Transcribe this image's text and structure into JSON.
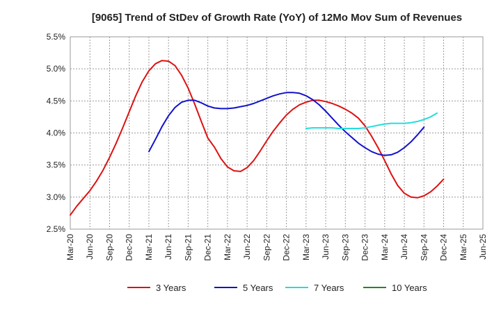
{
  "chart_data": {
    "type": "line",
    "title": "[9065]  Trend of StDev of Growth Rate (YoY) of 12Mo Mov Sum of Revenues",
    "xlabel": "",
    "ylabel": "",
    "ylim": [
      2.5,
      5.5
    ],
    "ytick_values": [
      2.5,
      3.0,
      3.5,
      4.0,
      4.5,
      5.0,
      5.5
    ],
    "ytick_labels": [
      "2.5%",
      "3.0%",
      "3.5%",
      "4.0%",
      "4.5%",
      "5.0%",
      "5.5%"
    ],
    "x_start": "Mar-20",
    "x_end": "Jun-25",
    "xtick_labels": [
      "Mar-20",
      "Jun-20",
      "Sep-20",
      "Dec-20",
      "Mar-21",
      "Jun-21",
      "Sep-21",
      "Dec-21",
      "Mar-22",
      "Jun-22",
      "Sep-22",
      "Dec-22",
      "Mar-23",
      "Jun-23",
      "Sep-23",
      "Dec-23",
      "Mar-24",
      "Jun-24",
      "Sep-24",
      "Dec-24",
      "Mar-25",
      "Jun-25"
    ],
    "grid": true,
    "legend_position": "bottom",
    "series": [
      {
        "name": "3 Years",
        "color": "#dd1111",
        "start_index": 0,
        "values": [
          2.72,
          2.86,
          2.98,
          3.1,
          3.25,
          3.42,
          3.62,
          3.84,
          4.08,
          4.33,
          4.58,
          4.8,
          4.97,
          5.08,
          5.13,
          5.12,
          5.05,
          4.9,
          4.7,
          4.45,
          4.18,
          3.92,
          3.78,
          3.6,
          3.47,
          3.41,
          3.4,
          3.46,
          3.57,
          3.72,
          3.88,
          4.03,
          4.16,
          4.28,
          4.37,
          4.44,
          4.48,
          4.51,
          4.51,
          4.49,
          4.46,
          4.42,
          4.37,
          4.31,
          4.23,
          4.11,
          3.95,
          3.77,
          3.57,
          3.36,
          3.18,
          3.06,
          3.0,
          2.99,
          3.02,
          3.08,
          3.17,
          3.28
        ]
      },
      {
        "name": "5 Years",
        "color": "#1111cc",
        "start_index": 12,
        "values": [
          3.71,
          3.9,
          4.1,
          4.27,
          4.4,
          4.48,
          4.51,
          4.51,
          4.47,
          4.42,
          4.39,
          4.38,
          4.38,
          4.39,
          4.41,
          4.43,
          4.46,
          4.5,
          4.54,
          4.58,
          4.61,
          4.63,
          4.63,
          4.62,
          4.58,
          4.52,
          4.44,
          4.34,
          4.23,
          4.12,
          4.02,
          3.93,
          3.84,
          3.77,
          3.71,
          3.67,
          3.65,
          3.66,
          3.7,
          3.77,
          3.86,
          3.97,
          4.09
        ]
      },
      {
        "name": "7 Years",
        "color": "#22dddd",
        "start_index": 36,
        "values": [
          4.07,
          4.08,
          4.08,
          4.08,
          4.08,
          4.07,
          4.07,
          4.07,
          4.07,
          4.08,
          4.1,
          4.12,
          4.14,
          4.15,
          4.15,
          4.15,
          4.16,
          4.18,
          4.21,
          4.25,
          4.31
        ]
      },
      {
        "name": "10 Years",
        "color": "#228822",
        "start_index": 0,
        "values": []
      }
    ]
  }
}
